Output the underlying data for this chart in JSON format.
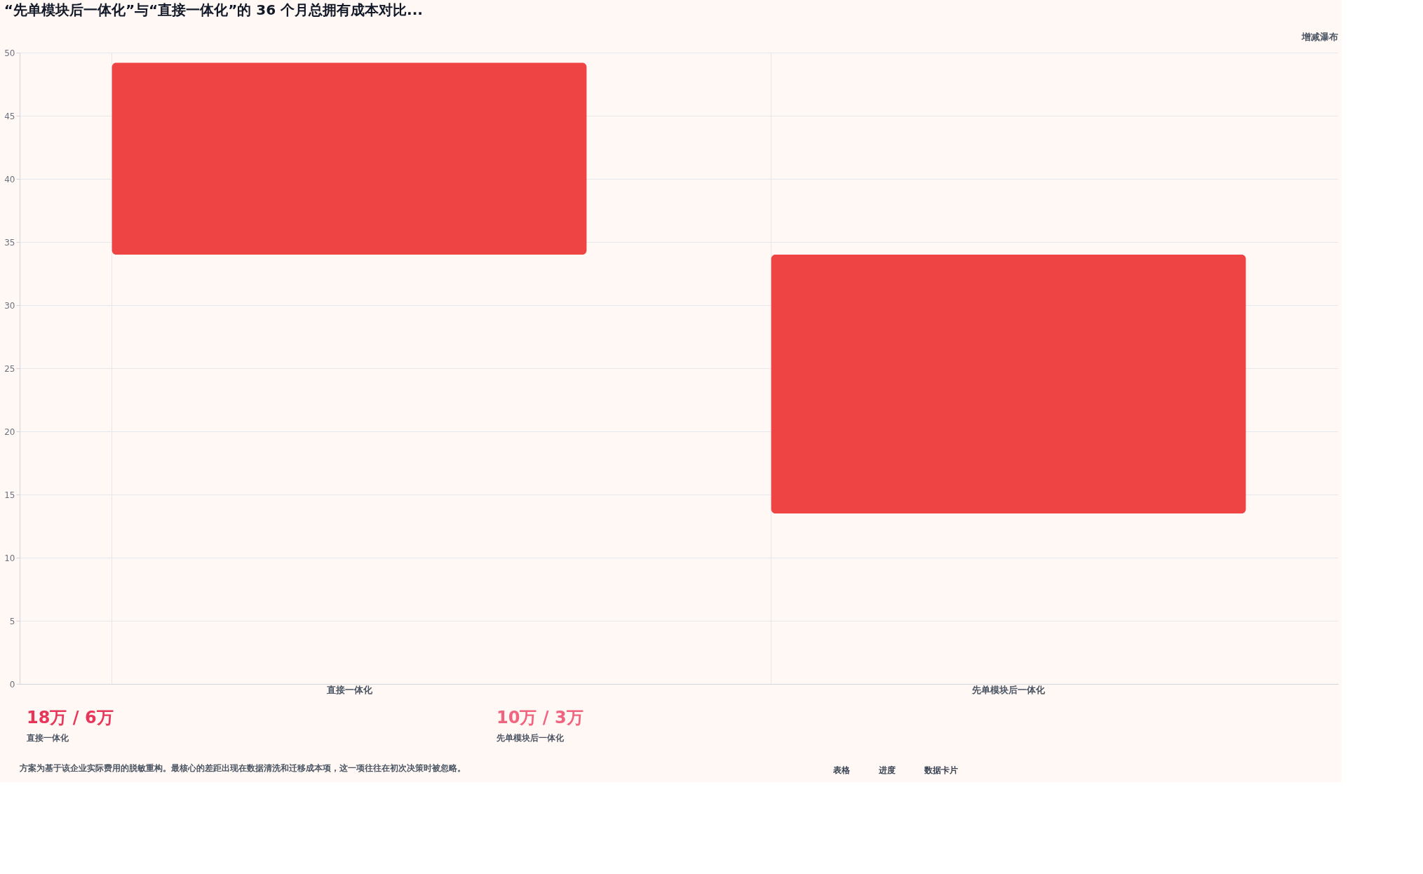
{
  "chart_data": {
    "type": "bar",
    "title": "“先单模块后一体化”与“直接一体化”的 36 个月总拥有成本对比...",
    "categories": [
      "直接一体化",
      "先单模块后一体化"
    ],
    "base": [
      34,
      13.5
    ],
    "values": [
      15.2,
      20.5
    ],
    "color": "#ef4444",
    "ylim": [
      0,
      50
    ],
    "yticks": [
      0,
      5,
      10,
      15,
      20,
      25,
      30,
      35,
      40,
      45,
      50
    ],
    "grid": true,
    "annotations": [
      "增减瀑布",
      "18万 / 6万",
      "直接一体化",
      "10万 / 3万",
      "先单模块后一体化",
      "方案为基于该企业实际费用的脱敏重构。最核心的差距出现在数据清洗和迁移成本项，这一项往往在初次决策时被忽略。",
      "表格",
      "进度",
      "数据卡片"
    ]
  }
}
